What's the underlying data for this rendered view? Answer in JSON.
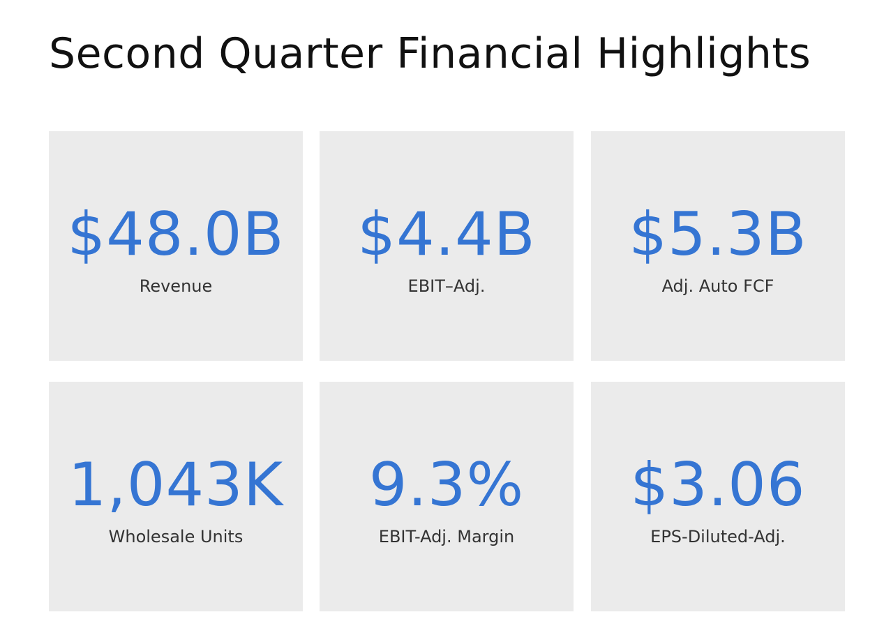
{
  "title": "Second Quarter Financial Highlights",
  "accent_color": "#3575d3",
  "metrics": [
    {
      "value": "$48.0B",
      "label": "Revenue"
    },
    {
      "value": "$4.4B",
      "label": "EBIT–Adj."
    },
    {
      "value": "$5.3B",
      "label": "Adj. Auto FCF"
    },
    {
      "value": "1,043K",
      "label": "Wholesale Units"
    },
    {
      "value": "9.3%",
      "label": "EBIT-Adj. Margin"
    },
    {
      "value": "$3.06",
      "label": "EPS-Diluted-Adj."
    }
  ]
}
